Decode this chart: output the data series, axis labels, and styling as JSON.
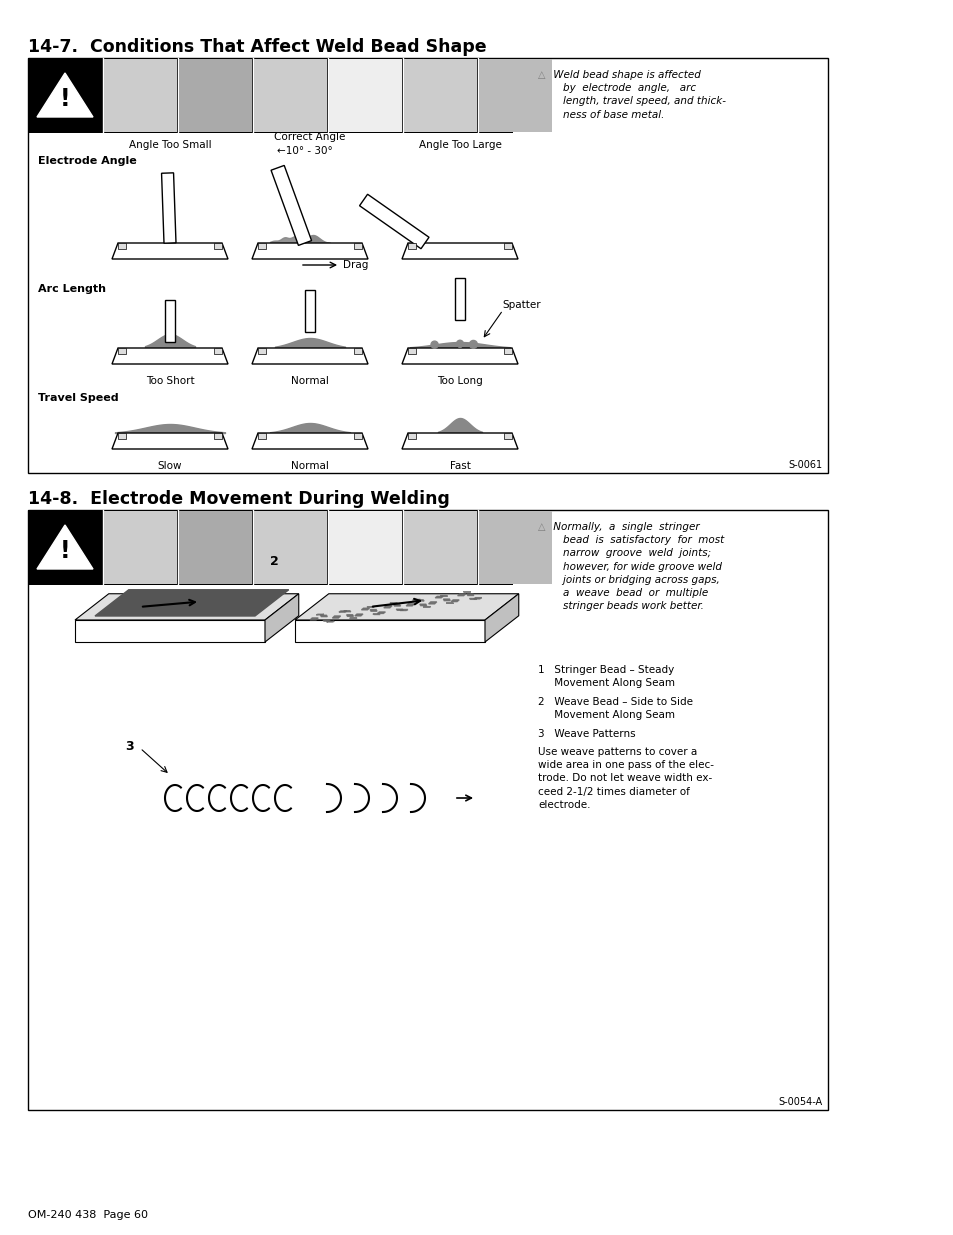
{
  "title1": "14-7.  Conditions That Affect Weld Bead Shape",
  "title2": "14-8.  Electrode Movement During Welding",
  "page_footer": "OM-240 438  Page 60",
  "section1_note_symbol": "▶",
  "section1_note": " Weld bead shape is affected\n    by  electrode  angle,   arc\n    length, travel speed, and thick-\n    ness of base metal.",
  "section2_note": " Normally,  a  single  stringer\n    bead  is  satisfactory  for  most\n    narrow  groove  weld  joints;\n    however, for wide groove weld\n    joints or bridging across gaps,\n    a  weave  bead  or  multiple\n    stringer beads work better.",
  "s2_item1": "1   Stringer Bead – Steady\n     Movement Along Seam",
  "s2_item2": "2   Weave Bead – Side to Side\n     Movement Along Seam",
  "s2_item3": "3   Weave Patterns",
  "s2_use": "Use weave patterns to cover a\nwide area in one pass of the elec-\ntrode. Do not let weave width ex-\nceed 2-1/2 times diameter of\nelectrode.",
  "bg_color": "#ffffff",
  "s0061": "S-0061",
  "s0054a": "S-0054-A"
}
